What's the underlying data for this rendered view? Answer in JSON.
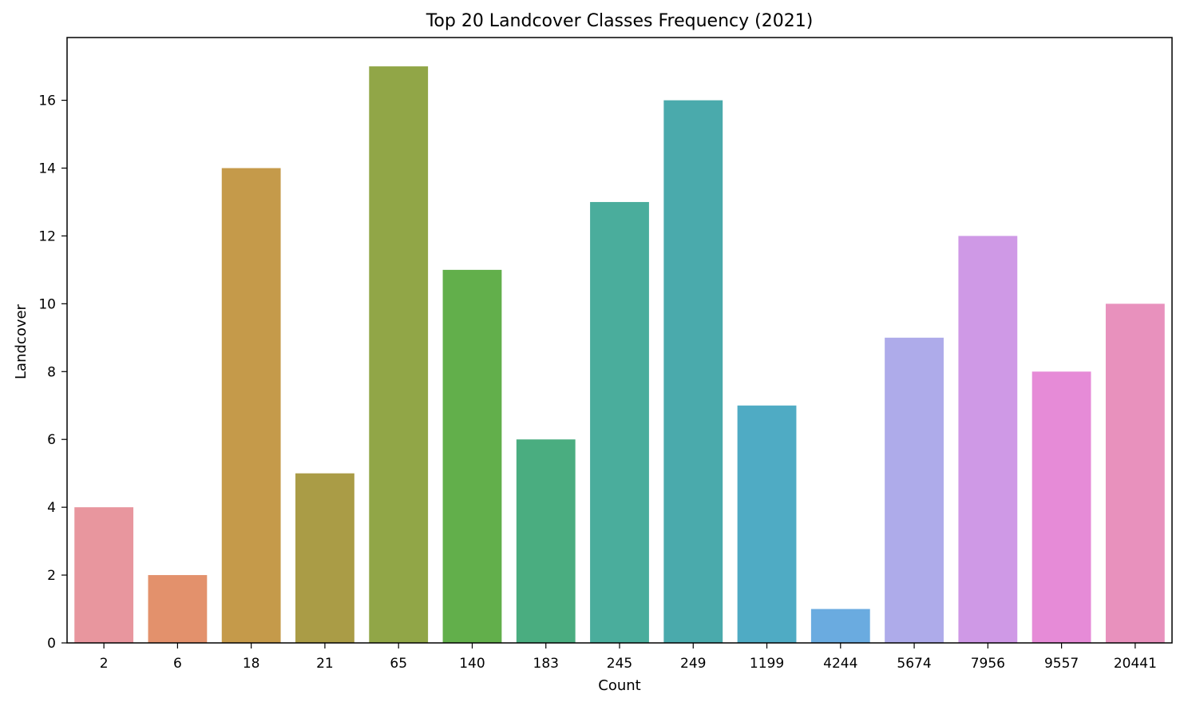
{
  "chart_data": {
    "type": "bar",
    "title": "Top 20 Landcover Classes Frequency (2021)",
    "xlabel": "Count",
    "ylabel": "Landcover",
    "categories": [
      "2",
      "6",
      "18",
      "21",
      "65",
      "140",
      "183",
      "245",
      "249",
      "1199",
      "4244",
      "5674",
      "7956",
      "9557",
      "20441"
    ],
    "values": [
      4,
      2,
      14,
      5,
      17,
      11,
      6,
      13,
      16,
      7,
      1,
      9,
      12,
      8,
      10
    ],
    "colors": [
      "#e8969e",
      "#e3916c",
      "#c59a4a",
      "#aa9c46",
      "#91a647",
      "#62af4b",
      "#4aad80",
      "#4aad9c",
      "#4aaaac",
      "#4fabc4",
      "#6aabe0",
      "#aeabea",
      "#cf99e6",
      "#e68bd7",
      "#e891bd"
    ],
    "ylim": [
      0,
      17.85
    ],
    "yticks": [
      0,
      2,
      4,
      6,
      8,
      10,
      12,
      14,
      16
    ],
    "grid": false,
    "legend": "none"
  }
}
